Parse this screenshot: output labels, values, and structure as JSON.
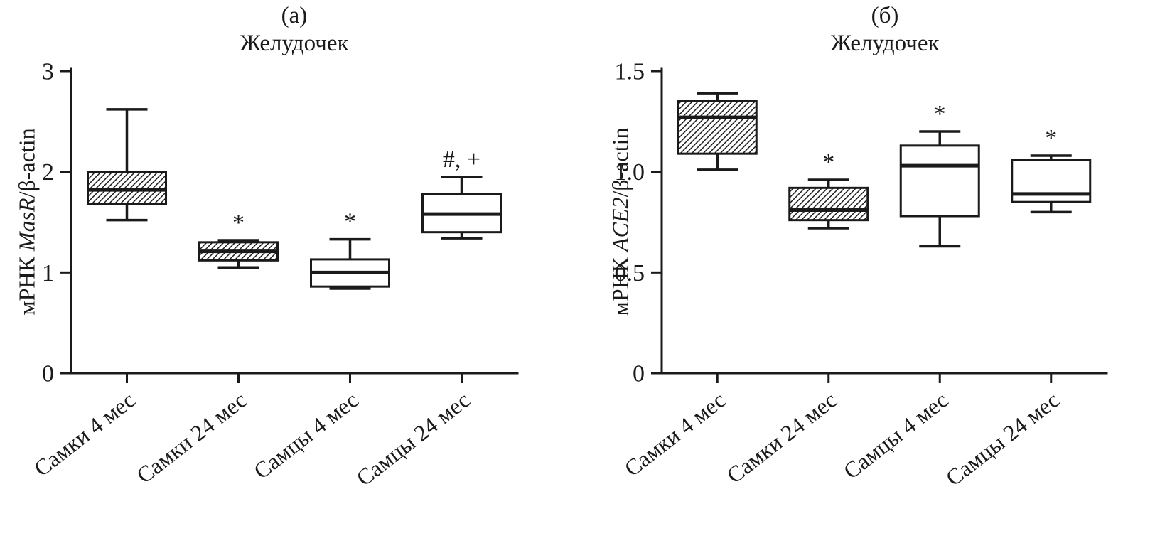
{
  "figure": {
    "background": "#ffffff",
    "ink": "#1a1a1a"
  },
  "chart_data": [
    {
      "type": "box",
      "panel_label": "(а)",
      "title": "Желудочек",
      "ylabel_text": "мРНК MasR/β-actin",
      "ylabel_parts": {
        "prefix": "мРНК ",
        "gene_italic": "MasR",
        "suffix": "/β-actin"
      },
      "ylim": [
        0,
        3
      ],
      "yticks": [
        0,
        1,
        2,
        3
      ],
      "ytick_labels": [
        "0",
        "1",
        "2",
        "3"
      ],
      "grid": false,
      "legend_position": "none",
      "categories": [
        "Самки 4 мес",
        "Самки 24 мес",
        "Самцы 4 мес",
        "Самцы 24 мес"
      ],
      "boxes": [
        {
          "category": "Самки 4 мес",
          "min": 1.52,
          "q1": 1.68,
          "median": 1.82,
          "q3": 2.0,
          "max": 2.62,
          "fill": "hatch",
          "annotation": ""
        },
        {
          "category": "Самки 24 мес",
          "min": 1.05,
          "q1": 1.12,
          "median": 1.21,
          "q3": 1.3,
          "max": 1.32,
          "fill": "hatch",
          "annotation": "*"
        },
        {
          "category": "Самцы 4 мес",
          "min": 0.84,
          "q1": 0.86,
          "median": 1.0,
          "q3": 1.13,
          "max": 1.33,
          "fill": "white",
          "annotation": "*"
        },
        {
          "category": "Самцы 24 мес",
          "min": 1.34,
          "q1": 1.4,
          "median": 1.58,
          "q3": 1.78,
          "max": 1.95,
          "fill": "white",
          "annotation": "#, +"
        }
      ]
    },
    {
      "type": "box",
      "panel_label": "(б)",
      "title": "Желудочек",
      "ylabel_text": "мРНК ACE2/β-actin",
      "ylabel_parts": {
        "prefix": "мРНК ",
        "gene_italic": "ACE2",
        "suffix": "/β-actin"
      },
      "ylim": [
        0,
        1.5
      ],
      "yticks": [
        0,
        0.5,
        1.0,
        1.5
      ],
      "ytick_labels": [
        "0",
        "0.5",
        "1.0",
        "1.5"
      ],
      "grid": false,
      "legend_position": "none",
      "categories": [
        "Самки 4 мес",
        "Самки 24 мес",
        "Самцы 4 мес",
        "Самцы 24 мес"
      ],
      "boxes": [
        {
          "category": "Самки 4 мес",
          "min": 1.01,
          "q1": 1.09,
          "median": 1.27,
          "q3": 1.35,
          "max": 1.39,
          "fill": "hatch",
          "annotation": ""
        },
        {
          "category": "Самки 24 мес",
          "min": 0.72,
          "q1": 0.76,
          "median": 0.81,
          "q3": 0.92,
          "max": 0.96,
          "fill": "hatch",
          "annotation": "*"
        },
        {
          "category": "Самцы 4 мес",
          "min": 0.63,
          "q1": 0.78,
          "median": 1.03,
          "q3": 1.13,
          "max": 1.2,
          "fill": "white",
          "annotation": "*"
        },
        {
          "category": "Самцы 24 мес",
          "min": 0.8,
          "q1": 0.85,
          "median": 0.89,
          "q3": 1.06,
          "max": 1.08,
          "fill": "white",
          "annotation": "*"
        }
      ]
    }
  ]
}
